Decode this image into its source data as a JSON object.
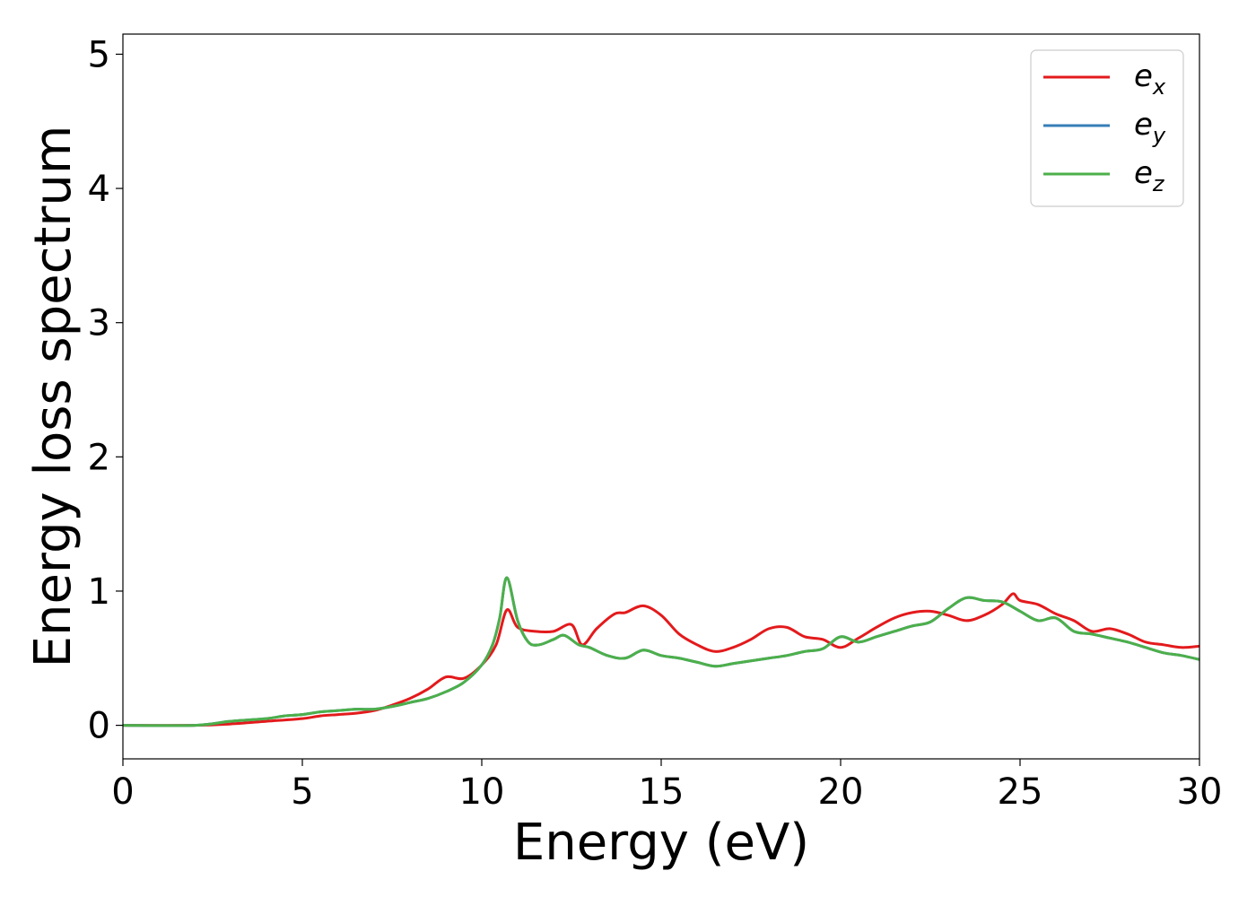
{
  "chart_data": {
    "type": "line",
    "xlabel": "Energy (eV)",
    "ylabel": "Energy loss spectrum",
    "xlim": [
      0,
      30
    ],
    "ylim": [
      -0.25,
      5.15
    ],
    "xticks": [
      0,
      5,
      10,
      15,
      20,
      25,
      30
    ],
    "yticks": [
      0,
      1,
      2,
      3,
      4,
      5
    ],
    "grid": false,
    "legend_position": "top-right",
    "series": [
      {
        "name_base": "e",
        "name_sub": "x",
        "color": "#e31a1c",
        "x": [
          0,
          2,
          3,
          4,
          5,
          5.5,
          6,
          6.5,
          7,
          7.5,
          8,
          8.5,
          9,
          9.5,
          10,
          10.4,
          10.7,
          11,
          11.5,
          12,
          12.5,
          12.8,
          13.2,
          13.7,
          14,
          14.5,
          15,
          15.5,
          16,
          16.5,
          17,
          17.5,
          18,
          18.5,
          19,
          19.5,
          20,
          20.5,
          21,
          21.5,
          22,
          22.5,
          23,
          23.5,
          24,
          24.5,
          24.8,
          25,
          25.5,
          26,
          26.5,
          27,
          27.5,
          28,
          28.5,
          29,
          29.5,
          30
        ],
        "y": [
          0.0,
          0.0,
          0.01,
          0.03,
          0.05,
          0.07,
          0.08,
          0.09,
          0.11,
          0.15,
          0.2,
          0.27,
          0.36,
          0.35,
          0.45,
          0.6,
          0.86,
          0.73,
          0.7,
          0.7,
          0.75,
          0.6,
          0.72,
          0.83,
          0.84,
          0.89,
          0.82,
          0.68,
          0.6,
          0.55,
          0.58,
          0.64,
          0.72,
          0.73,
          0.66,
          0.64,
          0.58,
          0.65,
          0.73,
          0.8,
          0.84,
          0.85,
          0.82,
          0.78,
          0.82,
          0.9,
          0.98,
          0.93,
          0.9,
          0.83,
          0.78,
          0.7,
          0.72,
          0.68,
          0.62,
          0.6,
          0.58,
          0.59
        ]
      },
      {
        "name_base": "e",
        "name_sub": "y",
        "color": "#377eb8",
        "x": [
          0,
          2,
          3,
          4,
          4.5,
          5,
          5.5,
          6,
          6.5,
          7,
          7.5,
          8,
          8.5,
          9,
          9.5,
          10,
          10.3,
          10.5,
          10.7,
          11,
          11.3,
          11.6,
          12,
          12.3,
          12.7,
          13,
          13.5,
          14,
          14.5,
          15,
          15.5,
          16,
          16.5,
          17,
          17.5,
          18,
          18.5,
          19,
          19.5,
          20,
          20.5,
          21,
          21.5,
          22,
          22.5,
          23,
          23.5,
          24,
          24.5,
          25,
          25.5,
          26,
          26.5,
          27,
          27.5,
          28,
          28.5,
          29,
          29.5,
          30
        ],
        "y": [
          0.0,
          0.0,
          0.03,
          0.05,
          0.07,
          0.08,
          0.1,
          0.11,
          0.12,
          0.12,
          0.14,
          0.17,
          0.2,
          0.25,
          0.32,
          0.45,
          0.6,
          0.8,
          1.1,
          0.78,
          0.62,
          0.6,
          0.64,
          0.67,
          0.6,
          0.58,
          0.52,
          0.5,
          0.56,
          0.52,
          0.5,
          0.47,
          0.44,
          0.46,
          0.48,
          0.5,
          0.52,
          0.55,
          0.57,
          0.66,
          0.62,
          0.66,
          0.7,
          0.74,
          0.77,
          0.87,
          0.95,
          0.93,
          0.92,
          0.85,
          0.78,
          0.8,
          0.7,
          0.68,
          0.65,
          0.62,
          0.58,
          0.54,
          0.52,
          0.49
        ]
      },
      {
        "name_base": "e",
        "name_sub": "z",
        "color": "#4daf4a",
        "x": [
          0,
          2,
          3,
          4,
          4.5,
          5,
          5.5,
          6,
          6.5,
          7,
          7.5,
          8,
          8.5,
          9,
          9.5,
          10,
          10.3,
          10.5,
          10.7,
          11,
          11.3,
          11.6,
          12,
          12.3,
          12.7,
          13,
          13.5,
          14,
          14.5,
          15,
          15.5,
          16,
          16.5,
          17,
          17.5,
          18,
          18.5,
          19,
          19.5,
          20,
          20.5,
          21,
          21.5,
          22,
          22.5,
          23,
          23.5,
          24,
          24.5,
          25,
          25.5,
          26,
          26.5,
          27,
          27.5,
          28,
          28.5,
          29,
          29.5,
          30
        ],
        "y": [
          0.0,
          0.0,
          0.03,
          0.05,
          0.07,
          0.08,
          0.1,
          0.11,
          0.12,
          0.12,
          0.14,
          0.17,
          0.2,
          0.25,
          0.32,
          0.45,
          0.6,
          0.8,
          1.1,
          0.78,
          0.62,
          0.6,
          0.64,
          0.67,
          0.6,
          0.58,
          0.52,
          0.5,
          0.56,
          0.52,
          0.5,
          0.47,
          0.44,
          0.46,
          0.48,
          0.5,
          0.52,
          0.55,
          0.57,
          0.66,
          0.62,
          0.66,
          0.7,
          0.74,
          0.77,
          0.87,
          0.95,
          0.93,
          0.92,
          0.85,
          0.78,
          0.8,
          0.7,
          0.68,
          0.65,
          0.62,
          0.58,
          0.54,
          0.52,
          0.49
        ]
      }
    ]
  }
}
